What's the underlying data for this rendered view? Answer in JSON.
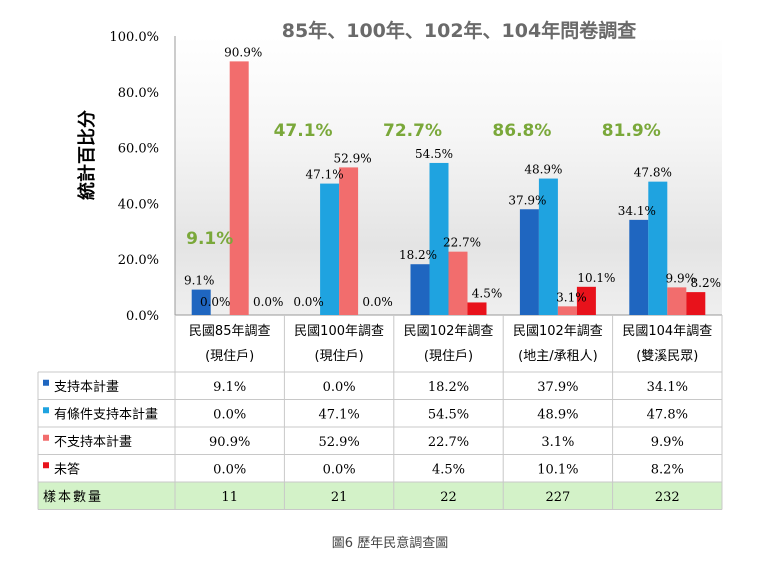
{
  "chart_data": {
    "type": "bar",
    "title": "85年、100年、102年、104年問卷調查",
    "ylabel": "統計百比分",
    "ylim": [
      0,
      100
    ],
    "yticks": [
      "0.0%",
      "20.0%",
      "40.0%",
      "60.0%",
      "80.0%",
      "100.0%"
    ],
    "grid": false,
    "legend_position": "table-left",
    "categories": [
      {
        "line1": "民國85年調查",
        "line2": "(現住戶)"
      },
      {
        "line1": "民國100年調查",
        "line2": "(現住戶)"
      },
      {
        "line1": "民國102年調查",
        "line2": "(現住戶)"
      },
      {
        "line1": "民國102年調查",
        "line2": "(地主/承租人)"
      },
      {
        "line1": "民國104年調查",
        "line2": "(雙溪民眾)"
      }
    ],
    "series": [
      {
        "name": "支持本計畫",
        "color": "#1f66c0",
        "values": [
          9.1,
          0.0,
          18.2,
          37.9,
          34.1
        ],
        "labels": [
          "9.1%",
          "0.0%",
          "18.2%",
          "37.9%",
          "34.1%"
        ]
      },
      {
        "name": "有條件支持本計畫",
        "color": "#1fa3e0",
        "values": [
          0.0,
          47.1,
          54.5,
          48.9,
          47.8
        ],
        "labels": [
          "0.0%",
          "47.1%",
          "54.5%",
          "48.9%",
          "47.8%"
        ]
      },
      {
        "name": "不支持本計畫",
        "color": "#f26d6d",
        "values": [
          90.9,
          52.9,
          22.7,
          3.1,
          9.9
        ],
        "labels": [
          "90.9%",
          "52.9%",
          "22.7%",
          "3.1%",
          "9.9%"
        ]
      },
      {
        "name": "未答",
        "color": "#e8121b",
        "values": [
          0.0,
          0.0,
          4.5,
          10.1,
          8.2
        ],
        "labels": [
          "0.0%",
          "0.0%",
          "4.5%",
          "10.1%",
          "8.2%"
        ]
      }
    ],
    "annotations": [
      "9.1%",
      "47.1%",
      "72.7%",
      "86.8%",
      "81.9%"
    ],
    "annotation_color": "#7aa83a",
    "sample_row": {
      "label": "樣本數量",
      "values": [
        "11",
        "21",
        "22",
        "227",
        "232"
      ],
      "fill": "#d3f2c8"
    }
  },
  "caption": "圖6 歷年民意調查圖"
}
